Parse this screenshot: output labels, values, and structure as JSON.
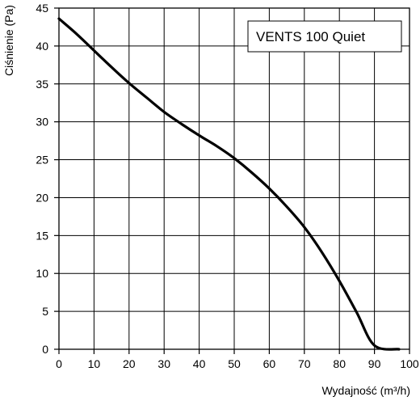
{
  "chart_data": {
    "type": "line",
    "xlabel": "Wydajność (m³/h)",
    "ylabel": "Ciśnienie (Pa)",
    "xlim": [
      0,
      100
    ],
    "ylim": [
      0,
      45
    ],
    "x_ticks": [
      "0",
      "10",
      "20",
      "30",
      "40",
      "50",
      "60",
      "70",
      "80",
      "90",
      "100"
    ],
    "y_ticks": [
      "0",
      "5",
      "10",
      "15",
      "20",
      "25",
      "30",
      "35",
      "40",
      "45"
    ],
    "grid": true,
    "legend_position": "top-right",
    "series": [
      {
        "name": "VENTS 100 Quiet",
        "color": "#000000",
        "x": [
          0,
          5,
          10,
          15,
          20,
          25,
          30,
          35,
          40,
          45,
          50,
          55,
          60,
          65,
          70,
          75,
          80,
          85,
          90,
          95,
          97
        ],
        "y": [
          43.6,
          41.6,
          39.4,
          37.2,
          35.1,
          33.2,
          31.3,
          29.7,
          28.2,
          26.8,
          25.2,
          23.3,
          21.2,
          18.8,
          16.1,
          12.8,
          9.0,
          4.8,
          0.5,
          -3.0,
          0
        ]
      }
    ]
  }
}
